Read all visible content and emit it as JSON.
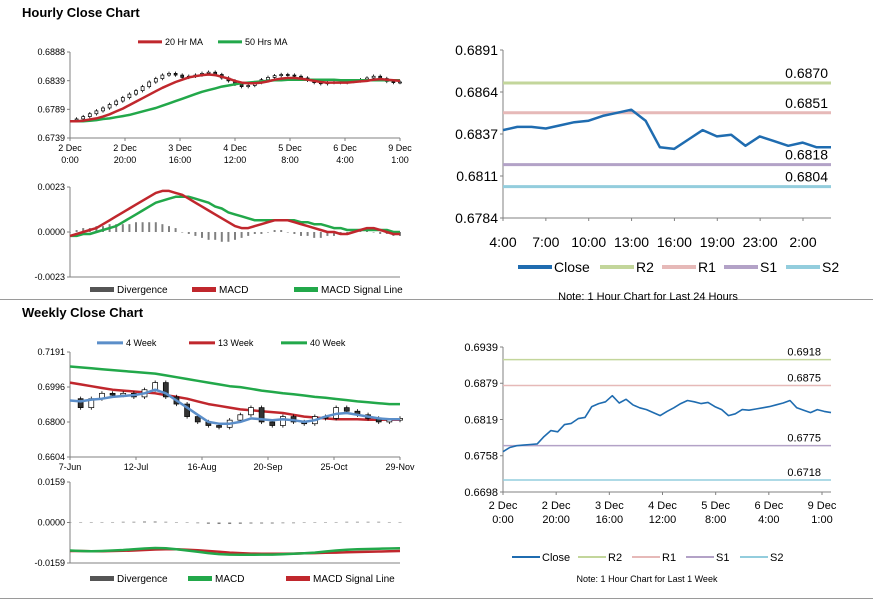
{
  "sections": {
    "hourly_title": "Hourly Close Chart",
    "weekly_title": "Weekly Close Chart"
  },
  "colors": {
    "red": "#c0272d",
    "green": "#22a84a",
    "blue": "#1f6cb0",
    "lightblue": "#5b8ec9",
    "r2": "#c3d69b",
    "r1": "#e6b9b8",
    "s1": "#b3a2c7",
    "s2": "#93cddd",
    "gray": "#808080"
  },
  "chart_data": [
    {
      "id": "hourly_price",
      "type": "line",
      "title": "Hourly Close Chart",
      "legend": [
        "20 Hr MA",
        "50 Hrs MA"
      ],
      "y_ticks": [
        "0.6888",
        "0.6839",
        "0.6789",
        "0.6739"
      ],
      "ylim": [
        0.6739,
        0.6888
      ],
      "x_ticks": [
        [
          "2 Dec",
          "0:00"
        ],
        [
          "2 Dec",
          "20:00"
        ],
        [
          "3 Dec",
          "16:00"
        ],
        [
          "4 Dec",
          "12:00"
        ],
        [
          "5 Dec",
          "8:00"
        ],
        [
          "6 Dec",
          "4:00"
        ],
        [
          "9 Dec",
          "1:00"
        ]
      ],
      "price": [
        0.677,
        0.6772,
        0.6776,
        0.6781,
        0.6786,
        0.6791,
        0.6797,
        0.6803,
        0.6809,
        0.6815,
        0.6821,
        0.6828,
        0.6836,
        0.6842,
        0.6848,
        0.6851,
        0.6848,
        0.6844,
        0.6846,
        0.6848,
        0.6851,
        0.6853,
        0.6849,
        0.6843,
        0.6838,
        0.6832,
        0.6828,
        0.683,
        0.6835,
        0.684,
        0.6844,
        0.6847,
        0.6849,
        0.6848,
        0.6846,
        0.6843,
        0.6839,
        0.6835,
        0.6833,
        0.6835,
        0.6836,
        0.6835,
        0.6837,
        0.6838,
        0.684,
        0.6843,
        0.6846,
        0.6842,
        0.6837,
        0.6835,
        0.6836
      ],
      "series": [
        {
          "name": "20 Hr MA",
          "values": [
            0.6768,
            0.6768,
            0.6769,
            0.6771,
            0.6773,
            0.6776,
            0.678,
            0.6785,
            0.679,
            0.6796,
            0.6802,
            0.6808,
            0.6814,
            0.682,
            0.6826,
            0.6831,
            0.6836,
            0.684,
            0.6844,
            0.6846,
            0.6848,
            0.6849,
            0.6848,
            0.6845,
            0.6842,
            0.6838,
            0.6835,
            0.6834,
            0.6834,
            0.6835,
            0.6837,
            0.684,
            0.6842,
            0.6843,
            0.6843,
            0.6842,
            0.684,
            0.6838,
            0.6836,
            0.6835,
            0.6835,
            0.6835,
            0.6835,
            0.6836,
            0.6837,
            0.6838,
            0.684,
            0.6841,
            0.684,
            0.6839,
            0.6838
          ]
        },
        {
          "name": "50 Hrs MA",
          "values": [
            0.6768,
            0.6768,
            0.6768,
            0.6769,
            0.677,
            0.6772,
            0.6773,
            0.6775,
            0.6777,
            0.6779,
            0.6782,
            0.6785,
            0.6788,
            0.6791,
            0.6795,
            0.6799,
            0.6803,
            0.6807,
            0.6811,
            0.6815,
            0.6819,
            0.6822,
            0.6825,
            0.6828,
            0.683,
            0.6832,
            0.6834,
            0.6835,
            0.6836,
            0.6837,
            0.6838,
            0.6839,
            0.6839,
            0.684,
            0.684,
            0.684,
            0.684,
            0.684,
            0.684,
            0.684,
            0.684,
            0.6839,
            0.6839,
            0.6839,
            0.6839,
            0.6839,
            0.6839,
            0.6839,
            0.6839,
            0.6839,
            0.6839
          ]
        }
      ]
    },
    {
      "id": "hourly_macd",
      "type": "line",
      "legend": [
        "Divergence",
        "MACD",
        "MACD Signal Line"
      ],
      "y_ticks": [
        "0.0023",
        "0.0000",
        "-0.0023"
      ],
      "ylim": [
        -0.0023,
        0.0023
      ],
      "divergence": [
        0.0,
        0.0001,
        0.0002,
        0.0002,
        0.0003,
        0.0003,
        0.0004,
        0.0004,
        0.0004,
        0.0004,
        0.0005,
        0.0005,
        0.0005,
        0.0005,
        0.0004,
        0.0003,
        0.0002,
        0.0,
        -0.0001,
        -0.0002,
        -0.0003,
        -0.0004,
        -0.0004,
        -0.0005,
        -0.0005,
        -0.0004,
        -0.0003,
        -0.0002,
        -0.0001,
        -0.0001,
        0.0,
        0.0001,
        0.0001,
        0.0,
        -0.0001,
        -0.0002,
        -0.0002,
        -0.0003,
        -0.0003,
        -0.0002,
        -0.0002,
        -0.0001,
        -0.0001,
        0.0,
        0.0001,
        0.0001,
        0.0,
        -0.0001,
        -0.0001,
        -0.0002,
        -0.0002
      ],
      "series": [
        {
          "name": "MACD",
          "values": [
            -0.0002,
            -0.0001,
            0.0,
            0.0001,
            0.0002,
            0.0004,
            0.0006,
            0.0008,
            0.001,
            0.0012,
            0.0014,
            0.0016,
            0.0018,
            0.002,
            0.0021,
            0.0021,
            0.002,
            0.0019,
            0.0017,
            0.0015,
            0.0013,
            0.0011,
            0.0009,
            0.0007,
            0.0005,
            0.0003,
            0.0002,
            0.0002,
            0.0003,
            0.0004,
            0.0005,
            0.0006,
            0.0006,
            0.0006,
            0.0005,
            0.0004,
            0.0003,
            0.0002,
            0.0001,
            0.0,
            0.0,
            -0.0001,
            -0.0001,
            0.0,
            0.0001,
            0.0002,
            0.0002,
            0.0001,
            0.0,
            -0.0001,
            -0.0001
          ]
        },
        {
          "name": "MACD Signal Line",
          "values": [
            -0.0002,
            -0.0002,
            -0.0001,
            -0.0001,
            0.0,
            0.0001,
            0.0002,
            0.0003,
            0.0005,
            0.0007,
            0.0009,
            0.0011,
            0.0013,
            0.0015,
            0.0016,
            0.0017,
            0.0018,
            0.0018,
            0.0018,
            0.0017,
            0.0016,
            0.0015,
            0.0013,
            0.0012,
            0.001,
            0.0009,
            0.0008,
            0.0007,
            0.0006,
            0.0006,
            0.0006,
            0.0006,
            0.0006,
            0.0006,
            0.0006,
            0.0005,
            0.0005,
            0.0004,
            0.0004,
            0.0003,
            0.0002,
            0.0002,
            0.0001,
            0.0001,
            0.0001,
            0.0001,
            0.0001,
            0.0001,
            0.0001,
            0.0,
            0.0
          ]
        }
      ]
    },
    {
      "id": "hourly_24h",
      "type": "line",
      "note": "Note: 1 Hour Chart for Last 24 Hours",
      "y_ticks": [
        "0.6891",
        "0.6864",
        "0.6837",
        "0.6811",
        "0.6784"
      ],
      "ylim": [
        0.6784,
        0.6891
      ],
      "x_ticks": [
        "4:00",
        "7:00",
        "10:00",
        "13:00",
        "16:00",
        "19:00",
        "23:00",
        "2:00"
      ],
      "legend": [
        "Close",
        "R2",
        "R1",
        "S1",
        "S2"
      ],
      "levels": [
        {
          "name": "R2",
          "value": 0.687,
          "label": "0.6870"
        },
        {
          "name": "R1",
          "value": 0.6851,
          "label": "0.6851"
        },
        {
          "name": "S1",
          "value": 0.6818,
          "label": "0.6818"
        },
        {
          "name": "S2",
          "value": 0.6804,
          "label": "0.6804"
        }
      ],
      "close": [
        0.684,
        0.6842,
        0.6842,
        0.6841,
        0.6843,
        0.6845,
        0.6846,
        0.6849,
        0.6851,
        0.6853,
        0.6846,
        0.6829,
        0.6828,
        0.6834,
        0.684,
        0.6836,
        0.6837,
        0.683,
        0.6836,
        0.6833,
        0.683,
        0.6832,
        0.6829,
        0.6829
      ]
    },
    {
      "id": "weekly_price",
      "type": "line",
      "title": "Weekly Close Chart",
      "legend": [
        "4 Week",
        "13 Week",
        "40 Week"
      ],
      "y_ticks": [
        "0.7191",
        "0.6996",
        "0.6800",
        "0.6604"
      ],
      "ylim": [
        0.6604,
        0.7191
      ],
      "x_ticks": [
        "7-Jun",
        "12-Jul",
        "16-Aug",
        "20-Sep",
        "25-Oct",
        "29-Nov"
      ],
      "price": [
        0.693,
        0.688,
        0.693,
        0.696,
        0.695,
        0.696,
        0.694,
        0.698,
        0.702,
        0.694,
        0.69,
        0.683,
        0.68,
        0.678,
        0.677,
        0.681,
        0.684,
        0.688,
        0.68,
        0.678,
        0.683,
        0.68,
        0.679,
        0.683,
        0.682,
        0.688,
        0.686,
        0.684,
        0.682,
        0.68,
        0.681,
        0.682
      ],
      "series": [
        {
          "name": "4 Week",
          "values": [
            0.692,
            0.6915,
            0.6925,
            0.693,
            0.694,
            0.6945,
            0.695,
            0.696,
            0.698,
            0.696,
            0.692,
            0.688,
            0.684,
            0.68,
            0.679,
            0.679,
            0.68,
            0.682,
            0.6815,
            0.681,
            0.6815,
            0.681,
            0.68,
            0.681,
            0.683,
            0.6845,
            0.685,
            0.684,
            0.683,
            0.682,
            0.6815,
            0.6815
          ]
        },
        {
          "name": "13 Week",
          "values": [
            0.702,
            0.701,
            0.7,
            0.699,
            0.698,
            0.6975,
            0.697,
            0.6965,
            0.696,
            0.695,
            0.694,
            0.693,
            0.6915,
            0.69,
            0.689,
            0.688,
            0.687,
            0.6865,
            0.686,
            0.6855,
            0.685,
            0.684,
            0.683,
            0.6825,
            0.682,
            0.6815,
            0.6815,
            0.6815,
            0.6812,
            0.6812,
            0.6812,
            0.6812
          ]
        },
        {
          "name": "40 Week",
          "values": [
            0.711,
            0.7105,
            0.71,
            0.7095,
            0.709,
            0.7085,
            0.708,
            0.7075,
            0.707,
            0.706,
            0.705,
            0.704,
            0.703,
            0.702,
            0.701,
            0.7,
            0.6995,
            0.6985,
            0.6975,
            0.6968,
            0.696,
            0.6955,
            0.6948,
            0.694,
            0.6935,
            0.6928,
            0.6922,
            0.6915,
            0.691,
            0.6905,
            0.69,
            0.69
          ]
        }
      ]
    },
    {
      "id": "weekly_macd",
      "type": "line",
      "legend": [
        "Divergence",
        "MACD",
        "MACD Signal Line"
      ],
      "y_ticks": [
        "0.0159",
        "0.0000",
        "-0.0159"
      ],
      "ylim": [
        -0.0159,
        0.0159
      ],
      "divergence": [
        0.0,
        0.0,
        0.0001,
        0.0002,
        0.0002,
        0.0003,
        0.0003,
        0.0004,
        0.0004,
        0.0003,
        0.0001,
        -0.0001,
        -0.0003,
        -0.0005,
        -0.0006,
        -0.0006,
        -0.0005,
        -0.0004,
        -0.0004,
        -0.0004,
        -0.0003,
        -0.0003,
        -0.0002,
        -0.0001,
        0.0,
        0.0002,
        0.0003,
        0.0003,
        0.0003,
        0.0003,
        0.0002,
        0.0002
      ],
      "series": [
        {
          "name": "MACD",
          "values": [
            -0.011,
            -0.0112,
            -0.0113,
            -0.0112,
            -0.011,
            -0.0108,
            -0.0105,
            -0.0102,
            -0.01,
            -0.0101,
            -0.0105,
            -0.011,
            -0.0115,
            -0.012,
            -0.0124,
            -0.0126,
            -0.0127,
            -0.0127,
            -0.0126,
            -0.0126,
            -0.0125,
            -0.0123,
            -0.0121,
            -0.0118,
            -0.0114,
            -0.011,
            -0.0107,
            -0.0105,
            -0.0104,
            -0.0103,
            -0.0102,
            -0.0101
          ]
        },
        {
          "name": "MACD Signal Line",
          "values": [
            -0.0112,
            -0.0112,
            -0.0113,
            -0.0113,
            -0.0112,
            -0.0111,
            -0.011,
            -0.0108,
            -0.0106,
            -0.0105,
            -0.0105,
            -0.0107,
            -0.0109,
            -0.0112,
            -0.0115,
            -0.0118,
            -0.012,
            -0.0122,
            -0.0123,
            -0.0123,
            -0.0123,
            -0.0122,
            -0.0121,
            -0.012,
            -0.0119,
            -0.0118,
            -0.0117,
            -0.0116,
            -0.0115,
            -0.0114,
            -0.0113,
            -0.0112
          ]
        }
      ]
    },
    {
      "id": "weekly_1w",
      "type": "line",
      "note": "Note: 1 Hour Chart for Last 1 Week",
      "y_ticks": [
        "0.6939",
        "0.6879",
        "0.6819",
        "0.6758",
        "0.6698"
      ],
      "ylim": [
        0.6698,
        0.6939
      ],
      "x_ticks": [
        [
          "2 Dec",
          "0:00"
        ],
        [
          "2 Dec",
          "20:00"
        ],
        [
          "3 Dec",
          "16:00"
        ],
        [
          "4 Dec",
          "12:00"
        ],
        [
          "5 Dec",
          "8:00"
        ],
        [
          "6 Dec",
          "4:00"
        ],
        [
          "9 Dec",
          "1:00"
        ]
      ],
      "legend": [
        "Close",
        "R2",
        "R1",
        "S1",
        "S2"
      ],
      "levels": [
        {
          "name": "R2",
          "value": 0.6918,
          "label": "0.6918"
        },
        {
          "name": "R1",
          "value": 0.6875,
          "label": "0.6875"
        },
        {
          "name": "S1",
          "value": 0.6775,
          "label": "0.6775"
        },
        {
          "name": "S2",
          "value": 0.6718,
          "label": "0.6718"
        }
      ],
      "close": [
        0.6765,
        0.6772,
        0.6775,
        0.6776,
        0.6777,
        0.6778,
        0.679,
        0.68,
        0.6798,
        0.681,
        0.6812,
        0.682,
        0.6822,
        0.684,
        0.6845,
        0.6848,
        0.6858,
        0.6846,
        0.6852,
        0.6843,
        0.6838,
        0.6835,
        0.683,
        0.6825,
        0.6832,
        0.6838,
        0.6845,
        0.685,
        0.6848,
        0.6845,
        0.6847,
        0.684,
        0.6835,
        0.6825,
        0.6828,
        0.6835,
        0.6834,
        0.6836,
        0.6838,
        0.684,
        0.6843,
        0.6846,
        0.685,
        0.6838,
        0.6834,
        0.683,
        0.6835,
        0.6832,
        0.683
      ]
    }
  ]
}
